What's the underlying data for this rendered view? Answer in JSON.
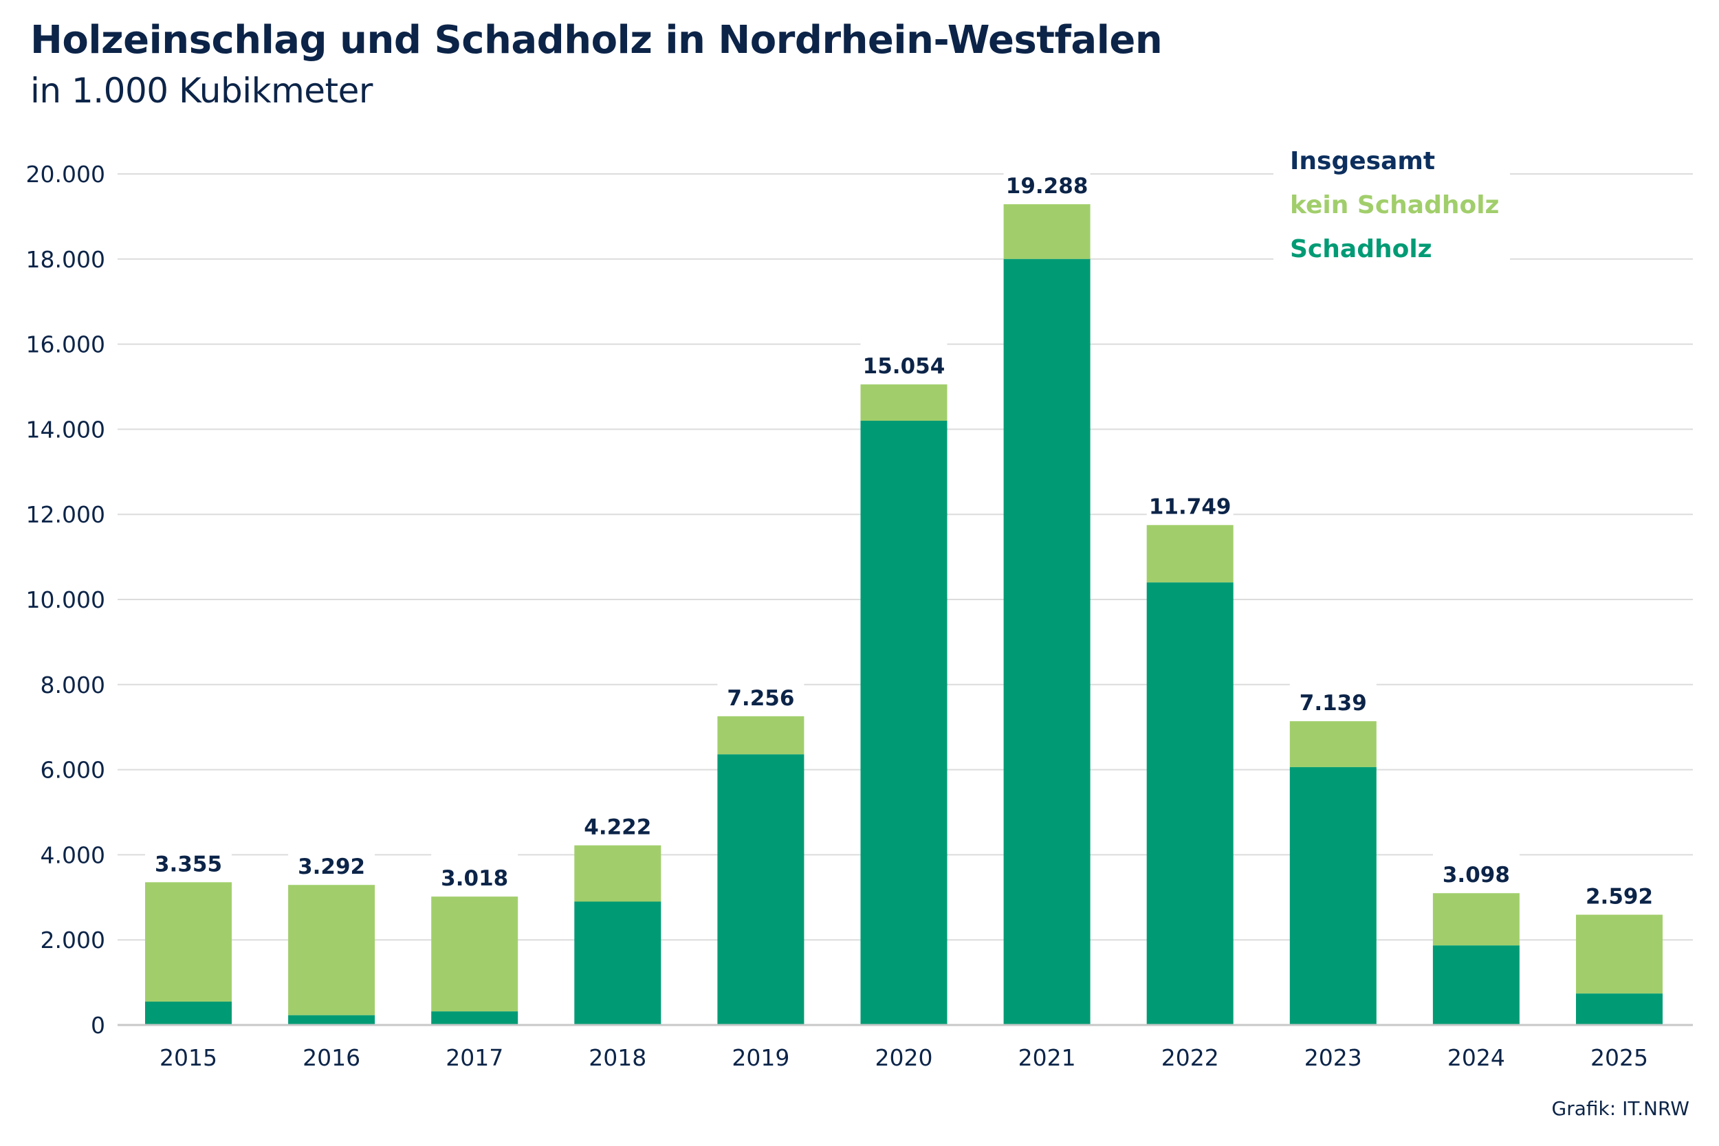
{
  "header": {
    "title": "Holzeinschlag und Schadholz in Nordrhein-Westfalen",
    "subtitle": "in 1.000 Kubikmeter"
  },
  "footer": {
    "source": "Grafik: IT.NRW"
  },
  "colors": {
    "text": "#0c2448",
    "total": "#0c2f5e",
    "kein_schadholz": "#a1ce6b",
    "schadholz": "#009b74",
    "grid": "#dcdcdc"
  },
  "chart_data": {
    "type": "bar",
    "stacked": true,
    "title": "Holzeinschlag und Schadholz in Nordrhein-Westfalen",
    "subtitle": "in 1.000 Kubikmeter",
    "xlabel": "",
    "ylabel": "",
    "ylim": [
      0,
      20000
    ],
    "yticks": [
      0,
      2000,
      4000,
      6000,
      8000,
      10000,
      12000,
      14000,
      16000,
      18000,
      20000
    ],
    "ytick_labels": [
      "0",
      "2.000",
      "4.000",
      "6.000",
      "8.000",
      "10.000",
      "12.000",
      "14.000",
      "16.000",
      "18.000",
      "20.000"
    ],
    "grid": true,
    "legend_position": "top-right",
    "legend": [
      {
        "key": "total",
        "label": "Insgesamt"
      },
      {
        "key": "kein_schadholz",
        "label": "kein Schadholz"
      },
      {
        "key": "schadholz",
        "label": "Schadholz"
      }
    ],
    "categories": [
      "2015",
      "2016",
      "2017",
      "2018",
      "2019",
      "2020",
      "2021",
      "2022",
      "2023",
      "2024",
      "2025"
    ],
    "series": [
      {
        "name": "Schadholz",
        "key": "schadholz",
        "values": [
          550,
          230,
          320,
          2900,
          6360,
          14200,
          18000,
          10400,
          6060,
          1870,
          740
        ]
      },
      {
        "name": "kein Schadholz",
        "key": "kein_schadholz",
        "values": [
          2805,
          3062,
          2698,
          1322,
          896,
          854,
          1288,
          1349,
          1079,
          1228,
          1852
        ]
      }
    ],
    "totals": [
      3355,
      3292,
      3018,
      4222,
      7256,
      15054,
      19288,
      11749,
      7139,
      3098,
      2592
    ],
    "total_labels": [
      "3.355",
      "3.292",
      "3.018",
      "4.222",
      "7.256",
      "15.054",
      "19.288",
      "11.749",
      "7.139",
      "3.098",
      "2.592"
    ]
  }
}
